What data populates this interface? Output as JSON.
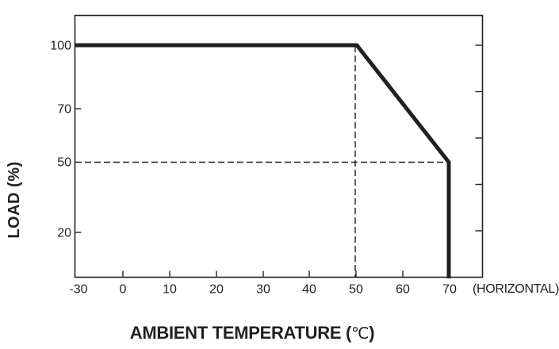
{
  "page": {
    "background_color": "#ffffff",
    "ink_color": "#231f20"
  },
  "chart": {
    "y_title": "LOAD (%)",
    "x_title_prefix": "AMBIENT TEMPERATURE (",
    "x_title_degree": "℃",
    "x_title_suffix": ")",
    "x_note": "(HORIZONTAL)"
  },
  "chart_data": {
    "type": "line",
    "title": "",
    "xlabel": "AMBIENT TEMPERATURE (℃)",
    "ylabel": "LOAD (%)",
    "x_axis_note": "(HORIZONTAL)",
    "x_tick_labels": [
      "-30",
      "0",
      "10",
      "20",
      "30",
      "40",
      "50",
      "60",
      "70"
    ],
    "x_tick_values": [
      -30,
      0,
      10,
      20,
      30,
      40,
      50,
      60,
      70
    ],
    "y_tick_labels": [
      "100",
      "70",
      "50",
      "20"
    ],
    "y_tick_values": [
      100,
      70,
      50,
      20
    ],
    "ylim": [
      0,
      100
    ],
    "xlim": [
      -30,
      75
    ],
    "grid": false,
    "legend": false,
    "right_axis_minor_ticks_pct": [
      100,
      80,
      60,
      40,
      20
    ],
    "series": [
      {
        "name": "load-derating-curve",
        "style": "thick-solid",
        "points_temp_c_load_pct": [
          [
            -30,
            100
          ],
          [
            50,
            100
          ],
          [
            70,
            50
          ],
          [
            70,
            0
          ]
        ]
      }
    ],
    "reference_lines": [
      {
        "type": "horizontal",
        "style": "dashed",
        "load_pct": 50,
        "from_temp_c": -30,
        "to_temp_c": 70
      },
      {
        "type": "vertical",
        "style": "dashed",
        "temp_c": 50,
        "from_load_pct": 0,
        "to_load_pct": 100
      }
    ]
  }
}
